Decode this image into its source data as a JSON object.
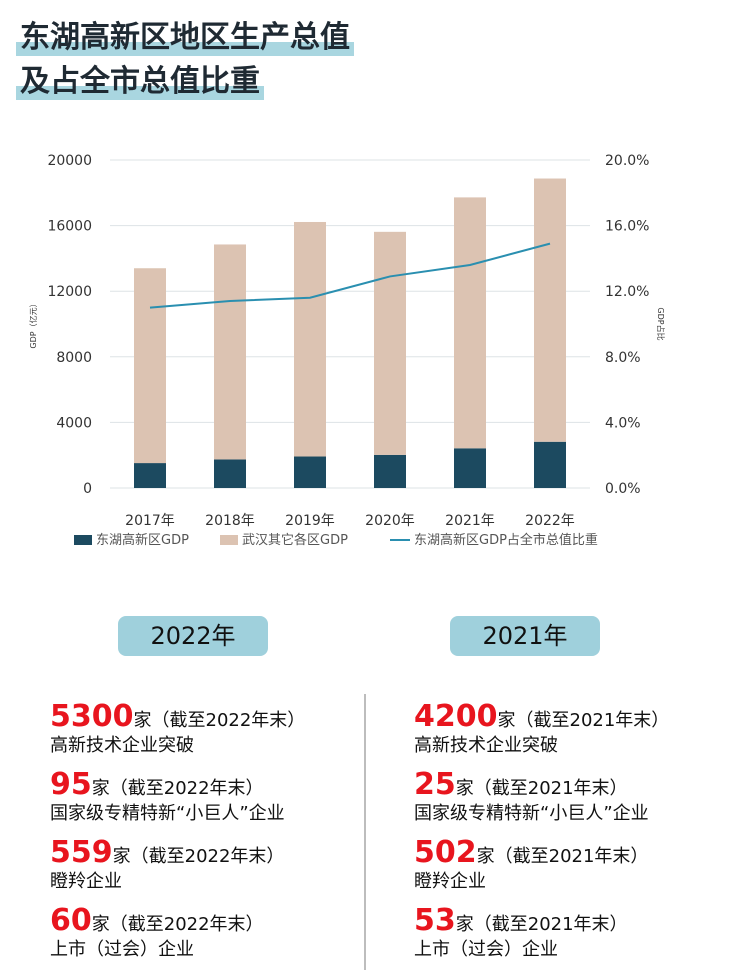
{
  "title": {
    "line1": "东湖高新区地区生产总值",
    "line2": "及占全市总值比重"
  },
  "chart_data": {
    "type": "bar",
    "stacked": true,
    "categories": [
      "2017年",
      "2018年",
      "2019年",
      "2020年",
      "2021年",
      "2022年"
    ],
    "series": [
      {
        "name": "东湖高新区GDP",
        "type": "bar",
        "axis": "left",
        "color": "#1c4a60",
        "values": [
          1520,
          1740,
          1920,
          2020,
          2420,
          2820
        ]
      },
      {
        "name": "武汉其它各区GDP",
        "type": "bar",
        "axis": "left",
        "color": "#dcc3b2",
        "values": [
          11880,
          13110,
          14300,
          13600,
          15300,
          16050
        ]
      },
      {
        "name": "东湖高新区GDP占全市总值比重",
        "type": "line",
        "axis": "right",
        "color": "#2a8fb0",
        "values": [
          11.0,
          11.4,
          11.6,
          12.9,
          13.6,
          14.9
        ]
      }
    ],
    "ylabel": "GDP（亿元）",
    "y2label": "GDP占比",
    "ylim": [
      0,
      20000
    ],
    "y2lim": [
      0,
      20
    ],
    "yticks": [
      "0",
      "4000",
      "8000",
      "12000",
      "16000",
      "20000"
    ],
    "y2ticks": [
      "0.0%",
      "4.0%",
      "8.0%",
      "12.0%",
      "16.0%",
      "20.0%"
    ],
    "grid": true,
    "legend_position": "bottom"
  },
  "years": {
    "left": "2022年",
    "right": "2021年"
  },
  "stats_left": [
    {
      "num": "5300",
      "unit": "家",
      "note": "（截至2022年末）",
      "desc": "高新技术企业突破"
    },
    {
      "num": "95",
      "unit": "家",
      "note": "（截至2022年末）",
      "desc": "国家级专精特新“小巨人”企业"
    },
    {
      "num": "559",
      "unit": "家",
      "note": "（截至2022年末）",
      "desc": "瞪羚企业"
    },
    {
      "num": "60",
      "unit": "家",
      "note": "（截至2022年末）",
      "desc": "上市（过会）企业"
    }
  ],
  "stats_right": [
    {
      "num": "4200",
      "unit": "家",
      "note": "（截至2021年末）",
      "desc": "高新技术企业突破"
    },
    {
      "num": "25",
      "unit": "家",
      "note": "（截至2021年末）",
      "desc": "国家级专精特新“小巨人”企业"
    },
    {
      "num": "502",
      "unit": "家",
      "note": "（截至2021年末）",
      "desc": "瞪羚企业"
    },
    {
      "num": "53",
      "unit": "家",
      "note": "（截至2021年末）",
      "desc": "上市（过会）企业"
    }
  ]
}
